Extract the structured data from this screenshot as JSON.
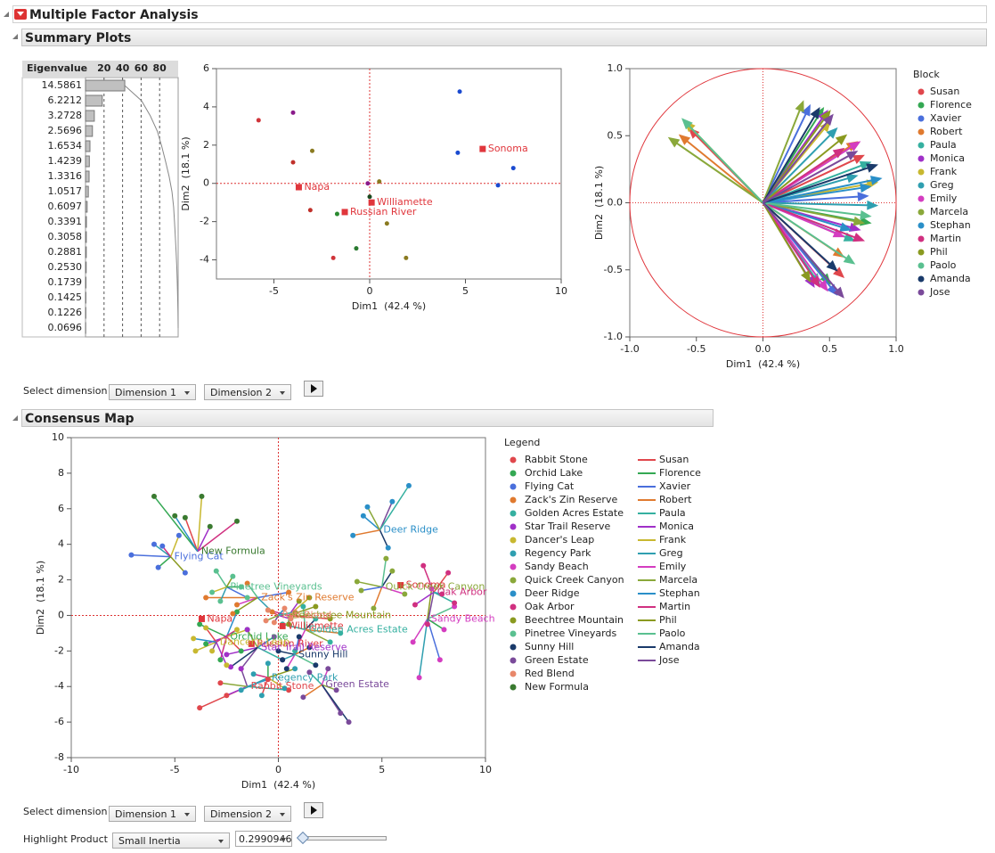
{
  "header": {
    "title": "Multiple Factor Analysis"
  },
  "sections": {
    "summary": "Summary Plots",
    "consensus": "Consensus Map"
  },
  "controls": {
    "select_label": "Select dimension",
    "dim1": "Dimension 1",
    "dim2": "Dimension 2",
    "highlight_label": "Highlight Product",
    "highlight_option": "Small Inertia",
    "inertia": "0.2990946"
  },
  "chart_data": [
    {
      "type": "bar",
      "column_label": "Eigenvalue",
      "values": [
        14.5861,
        6.2212,
        3.2728,
        2.5696,
        1.6534,
        1.4239,
        1.3316,
        1.0517,
        0.6097,
        0.3391,
        0.3058,
        0.2881,
        0.253,
        0.1739,
        0.1425,
        0.1226,
        0.0696
      ],
      "value_labels": [
        "14.5861",
        "6.2212",
        "3.2728",
        "2.5696",
        "1.6534",
        "1.4239",
        "1.3316",
        "1.0517",
        "0.6097",
        "0.3391",
        "0.3058",
        "0.2881",
        "0.2530",
        "0.1739",
        "0.1425",
        "0.1226",
        "0.0696"
      ],
      "percent": [
        42.38,
        18.08,
        9.51,
        7.47,
        4.8,
        4.14,
        3.87,
        3.06,
        1.77,
        0.99,
        0.89,
        0.84,
        0.74,
        0.51,
        0.41,
        0.36,
        0.2
      ],
      "cumulative": [
        42.38,
        60.46,
        69.97,
        77.44,
        82.24,
        86.38,
        90.25,
        93.31,
        95.08,
        96.07,
        96.96,
        97.8,
        98.54,
        99.05,
        99.46,
        99.82,
        100
      ],
      "color": "#c0c0c0",
      "xlim": [
        0,
        100
      ],
      "xticks": [
        20,
        40,
        60,
        80
      ]
    },
    {
      "type": "scatter",
      "x_label": "Dim1  (42.4 %)",
      "y_label": "Dim2  (18.1 %)",
      "xlim": [
        -8,
        10
      ],
      "ylim": [
        -5,
        6
      ],
      "xticks": [
        -5,
        0,
        5,
        10
      ],
      "yticks": [
        -4,
        -2,
        0,
        2,
        4,
        6
      ],
      "zero_lines": true,
      "points": {
        "x": [
          -5.8,
          -4.0,
          -3.0,
          -4.0,
          -3.1,
          -1.9,
          -0.7,
          -1.7,
          -0.1,
          0.0,
          0.5,
          0.9,
          1.9,
          4.7,
          4.6,
          6.7,
          7.5
        ],
        "y": [
          3.3,
          3.7,
          1.7,
          1.1,
          -1.4,
          -3.9,
          -3.4,
          -1.6,
          0.0,
          -0.7,
          0.1,
          -2.1,
          -3.9,
          4.8,
          1.6,
          -0.1,
          0.8
        ],
        "colors": [
          "#d0343a",
          "#8a1a8a",
          "#8a7a20",
          "#c0302a",
          "#c0302a",
          "#d0343a",
          "#2a7a30",
          "#2a8a30",
          "#8a1a8a",
          "#1a4a20",
          "#8a7a20",
          "#8a7a20",
          "#8a7a20",
          "#1a4ad0",
          "#1a4ad0",
          "#1a4ad0",
          "#1a4ad0"
        ]
      },
      "products": [
        {
          "label": "Sonoma",
          "x": 5.9,
          "y": 1.8
        },
        {
          "label": "Napa",
          "x": -3.7,
          "y": -0.2
        },
        {
          "label": "Williamette",
          "x": 0.1,
          "y": -1.0
        },
        {
          "label": "Russian River",
          "x": -1.3,
          "y": -1.5
        }
      ],
      "product_color": "#e0363c"
    },
    {
      "type": "vector",
      "x_label": "Dim1  (42.4 %)",
      "y_label": "Dim2  (18.1 %)",
      "legend_title": "Block",
      "xlim": [
        -1,
        1
      ],
      "ylim": [
        -1,
        1
      ],
      "xticks": [
        {
          "value": -1,
          "label": "-1.0"
        },
        -0.5,
        {
          "value": 0,
          "label": "0.0"
        },
        0.5,
        {
          "value": 1,
          "label": "1.0"
        }
      ],
      "yticks": [
        {
          "value": -1,
          "label": "-1.0"
        },
        -0.5,
        {
          "value": 0,
          "label": "0.0"
        },
        0.5,
        {
          "value": 1,
          "label": "1.0"
        }
      ],
      "circle_color": "#e0363c",
      "series": [
        {
          "name": "Susan",
          "color": "#e0474c",
          "x": [
            0.6,
            0.75,
            -0.55
          ],
          "y": [
            -0.55,
            0.35,
            0.55
          ]
        },
        {
          "name": "Florence",
          "color": "#34a853",
          "x": [
            0.45,
            0.8,
            0.5
          ],
          "y": [
            0.7,
            -0.15,
            -0.6
          ]
        },
        {
          "name": "Xavier",
          "color": "#4a6fdc",
          "x": [
            0.35,
            0.78,
            0.55
          ],
          "y": [
            0.72,
            0.05,
            -0.68
          ]
        },
        {
          "name": "Robert",
          "color": "#e07a2f",
          "x": [
            -0.62,
            0.7,
            0.6
          ],
          "y": [
            0.5,
            0.45,
            -0.4
          ]
        },
        {
          "name": "Paula",
          "color": "#35b0a0",
          "x": [
            0.8,
            0.68,
            0.42
          ],
          "y": [
            0.3,
            -0.28,
            -0.6
          ]
        },
        {
          "name": "Monica",
          "color": "#a030c8",
          "x": [
            0.48,
            0.72,
            0.38
          ],
          "y": [
            0.68,
            -0.2,
            -0.62
          ]
        },
        {
          "name": "Frank",
          "color": "#c8b830",
          "x": [
            0.5,
            0.85,
            -0.58
          ],
          "y": [
            0.6,
            0.15,
            0.6
          ]
        },
        {
          "name": "Greg",
          "color": "#2f9fb0",
          "x": [
            0.55,
            0.85,
            0.7
          ],
          "y": [
            0.55,
            -0.02,
            0.2
          ]
        },
        {
          "name": "Emily",
          "color": "#d43dc0",
          "x": [
            0.72,
            0.6,
            0.48
          ],
          "y": [
            0.45,
            -0.25,
            -0.65
          ]
        },
        {
          "name": "Marcela",
          "color": "#8aa83a",
          "x": [
            -0.7,
            0.3,
            0.75
          ],
          "y": [
            0.48,
            0.75,
            -0.15
          ]
        },
        {
          "name": "Stephan",
          "color": "#2a8fc8",
          "x": [
            0.88,
            0.8,
            0.65
          ],
          "y": [
            0.18,
            0.12,
            -0.2
          ]
        },
        {
          "name": "Martin",
          "color": "#d03080",
          "x": [
            0.6,
            0.75,
            0.42
          ],
          "y": [
            0.4,
            -0.28,
            -0.62
          ]
        },
        {
          "name": "Phil",
          "color": "#8a9a20",
          "x": [
            0.5,
            0.62,
            0.35
          ],
          "y": [
            0.68,
            0.5,
            -0.58
          ]
        },
        {
          "name": "Paolo",
          "color": "#5ac090",
          "x": [
            -0.6,
            0.68,
            0.8
          ],
          "y": [
            0.62,
            -0.45,
            -0.1
          ]
        },
        {
          "name": "Amanda",
          "color": "#1a3a6a",
          "x": [
            0.42,
            0.85,
            0.55
          ],
          "y": [
            0.7,
            0.28,
            -0.5
          ]
        },
        {
          "name": "Jose",
          "color": "#7a4a9a",
          "x": [
            0.52,
            0.6,
            0.7
          ],
          "y": [
            0.65,
            -0.7,
            0.38
          ]
        }
      ]
    },
    {
      "type": "star",
      "x_label": "Dim1  (42.4 %)",
      "y_label": "Dim2  (18.1 %)",
      "legend_title": "Legend",
      "xlim": [
        -10,
        10
      ],
      "ylim": [
        -8,
        10
      ],
      "xticks": [
        -10,
        -5,
        0,
        5,
        10
      ],
      "yticks": [
        -8,
        -6,
        -4,
        -2,
        0,
        2,
        4,
        6,
        8,
        10
      ],
      "zero_lines": true,
      "products": [
        {
          "name": "Rabbit Stone",
          "color": "#e0474c",
          "x": -1.5,
          "y": -4.0,
          "partial_x": [
            -3.8,
            -2.5,
            -0.5,
            -1.8,
            0.5,
            -2.8
          ],
          "partial_y": [
            -5.2,
            -4.5,
            -3.6,
            -3.0,
            -4.2,
            -3.8
          ]
        },
        {
          "name": "Orchid Lake",
          "color": "#34a853",
          "x": -2.5,
          "y": -1.2,
          "partial_x": [
            -3.8,
            -1.5,
            -2.8,
            -1.8,
            -3.5,
            -2.0
          ],
          "partial_y": [
            -0.5,
            -0.8,
            -2.5,
            -2.0,
            -1.6,
            0.2
          ]
        },
        {
          "name": "Flying Cat",
          "color": "#4a6fdc",
          "x": -5.2,
          "y": 3.3,
          "partial_x": [
            -7.1,
            -6.0,
            -4.5,
            -5.8,
            -4.8,
            -5.6
          ],
          "partial_y": [
            3.4,
            4.0,
            2.4,
            2.7,
            4.5,
            3.9
          ]
        },
        {
          "name": "Zack's Zin Reserve",
          "color": "#e07a2f",
          "x": -1.0,
          "y": 1.0,
          "partial_x": [
            -3.5,
            -2.0,
            -1.5,
            0.5,
            -0.3,
            -2.2
          ],
          "partial_y": [
            1.0,
            0.6,
            1.8,
            1.3,
            0.2,
            0.1
          ]
        },
        {
          "name": "Golden Acres Estate",
          "color": "#35b0a0",
          "x": 1.3,
          "y": -0.8,
          "partial_x": [
            0.2,
            2.5,
            1.8,
            3.0,
            0.8,
            1.2
          ],
          "partial_y": [
            -0.5,
            -1.5,
            -0.2,
            -1.0,
            -2.0,
            0.5
          ]
        },
        {
          "name": "Star Trail Reserve",
          "color": "#a030c8",
          "x": -1.0,
          "y": -1.8,
          "partial_x": [
            -2.5,
            -0.2,
            -1.8,
            0.2,
            -1.5,
            -2.3
          ],
          "partial_y": [
            -2.2,
            -1.2,
            -3.0,
            -2.5,
            -0.8,
            -2.9
          ]
        },
        {
          "name": "Dancer's Leap",
          "color": "#c8b830",
          "x": -3.0,
          "y": -1.5,
          "partial_x": [
            -4.0,
            -2.0,
            -3.5,
            -2.5,
            -4.1,
            -3.2
          ],
          "partial_y": [
            -2.0,
            -0.8,
            -0.7,
            -2.8,
            -1.3,
            -2.0
          ]
        },
        {
          "name": "Regency Park",
          "color": "#2f9fb0",
          "x": -0.5,
          "y": -3.5,
          "partial_x": [
            -1.8,
            0.8,
            -0.5,
            0.3,
            -1.2,
            -0.8
          ],
          "partial_y": [
            -4.2,
            -3.0,
            -2.7,
            -4.1,
            -3.3,
            -4.5
          ]
        },
        {
          "name": "Sandy Beach",
          "color": "#d43dc0",
          "x": 7.2,
          "y": -0.2,
          "partial_x": [
            6.5,
            8.5,
            7.8,
            6.8,
            7.4,
            8.0
          ],
          "partial_y": [
            -1.5,
            0.5,
            -2.5,
            -3.5,
            1.5,
            -0.8
          ]
        },
        {
          "name": "Quick Creek Canyon",
          "color": "#8aa83a",
          "x": 5.0,
          "y": 1.6,
          "partial_x": [
            3.8,
            5.5,
            4.6,
            6.1,
            5.2,
            4.0
          ],
          "partial_y": [
            1.9,
            2.5,
            0.4,
            1.2,
            3.2,
            1.4
          ]
        },
        {
          "name": "Deer Ridge",
          "color": "#2a8fc8",
          "x": 4.9,
          "y": 4.8,
          "partial_x": [
            4.1,
            5.5,
            6.3,
            4.3,
            5.3,
            3.6
          ],
          "partial_y": [
            5.6,
            6.4,
            7.3,
            6.1,
            3.8,
            4.5
          ]
        },
        {
          "name": "Oak Arbor",
          "color": "#d03080",
          "x": 7.5,
          "y": 1.3,
          "partial_x": [
            7.0,
            8.2,
            6.6,
            7.9,
            7.2,
            8.5
          ],
          "partial_y": [
            2.8,
            2.4,
            0.6,
            1.2,
            -0.5,
            0.7
          ]
        },
        {
          "name": "Beechtree Mountain",
          "color": "#8a9a20",
          "x": 0.5,
          "y": 0.0,
          "partial_x": [
            1.8,
            0.5,
            1.5,
            -0.5,
            2.5,
            1.0
          ],
          "partial_y": [
            0.5,
            -0.5,
            1.0,
            0.3,
            -0.2,
            0.8
          ]
        },
        {
          "name": "Pinetree Vineyards",
          "color": "#5ac090",
          "x": -2.5,
          "y": 1.6,
          "partial_x": [
            -3.0,
            -1.5,
            -2.8,
            -2.2,
            -1.8,
            -3.2
          ],
          "partial_y": [
            2.5,
            1.0,
            0.8,
            2.2,
            1.6,
            1.3
          ]
        },
        {
          "name": "Sunny Hill",
          "color": "#1a3a6a",
          "x": 0.8,
          "y": -2.2,
          "partial_x": [
            0.0,
            1.5,
            0.4,
            1.8,
            1.0,
            0.2
          ],
          "partial_y": [
            -2.0,
            -1.8,
            -3.0,
            -2.8,
            -1.2,
            -2.5
          ]
        },
        {
          "name": "Green Estate",
          "color": "#7a4a9a",
          "x": 2.1,
          "y": -3.9,
          "partial_x": [
            3.0,
            1.5,
            2.8,
            3.4,
            1.2,
            2.4
          ],
          "partial_y": [
            -5.5,
            -3.2,
            -4.2,
            -6.0,
            -4.6,
            -3.0
          ]
        },
        {
          "name": "Red Blend",
          "color": "#e8876a",
          "x": 0.0,
          "y": 0.0,
          "partial_x": [
            -0.5,
            0.6,
            0.3,
            -0.2,
            0.8,
            -0.6
          ],
          "partial_y": [
            0.3,
            -0.2,
            0.4,
            -0.4,
            0.2,
            -0.3
          ]
        },
        {
          "name": "New Formula",
          "color": "#3a7a30",
          "x": -3.9,
          "y": 3.6,
          "partial_x": [
            -6.0,
            -3.7,
            -2.0,
            -4.5,
            -3.3,
            -5.0
          ],
          "partial_y": [
            6.7,
            6.7,
            5.3,
            5.5,
            5.0,
            5.6
          ]
        }
      ],
      "supplementary": [
        {
          "label": "Sonoma",
          "x": 5.9,
          "y": 1.7
        },
        {
          "label": "Napa",
          "x": -3.7,
          "y": -0.2
        },
        {
          "label": "Williamette",
          "x": 0.2,
          "y": -0.6
        },
        {
          "label": "Russian River",
          "x": -1.3,
          "y": -1.6
        }
      ],
      "supplementary_color": "#e0363c"
    }
  ]
}
